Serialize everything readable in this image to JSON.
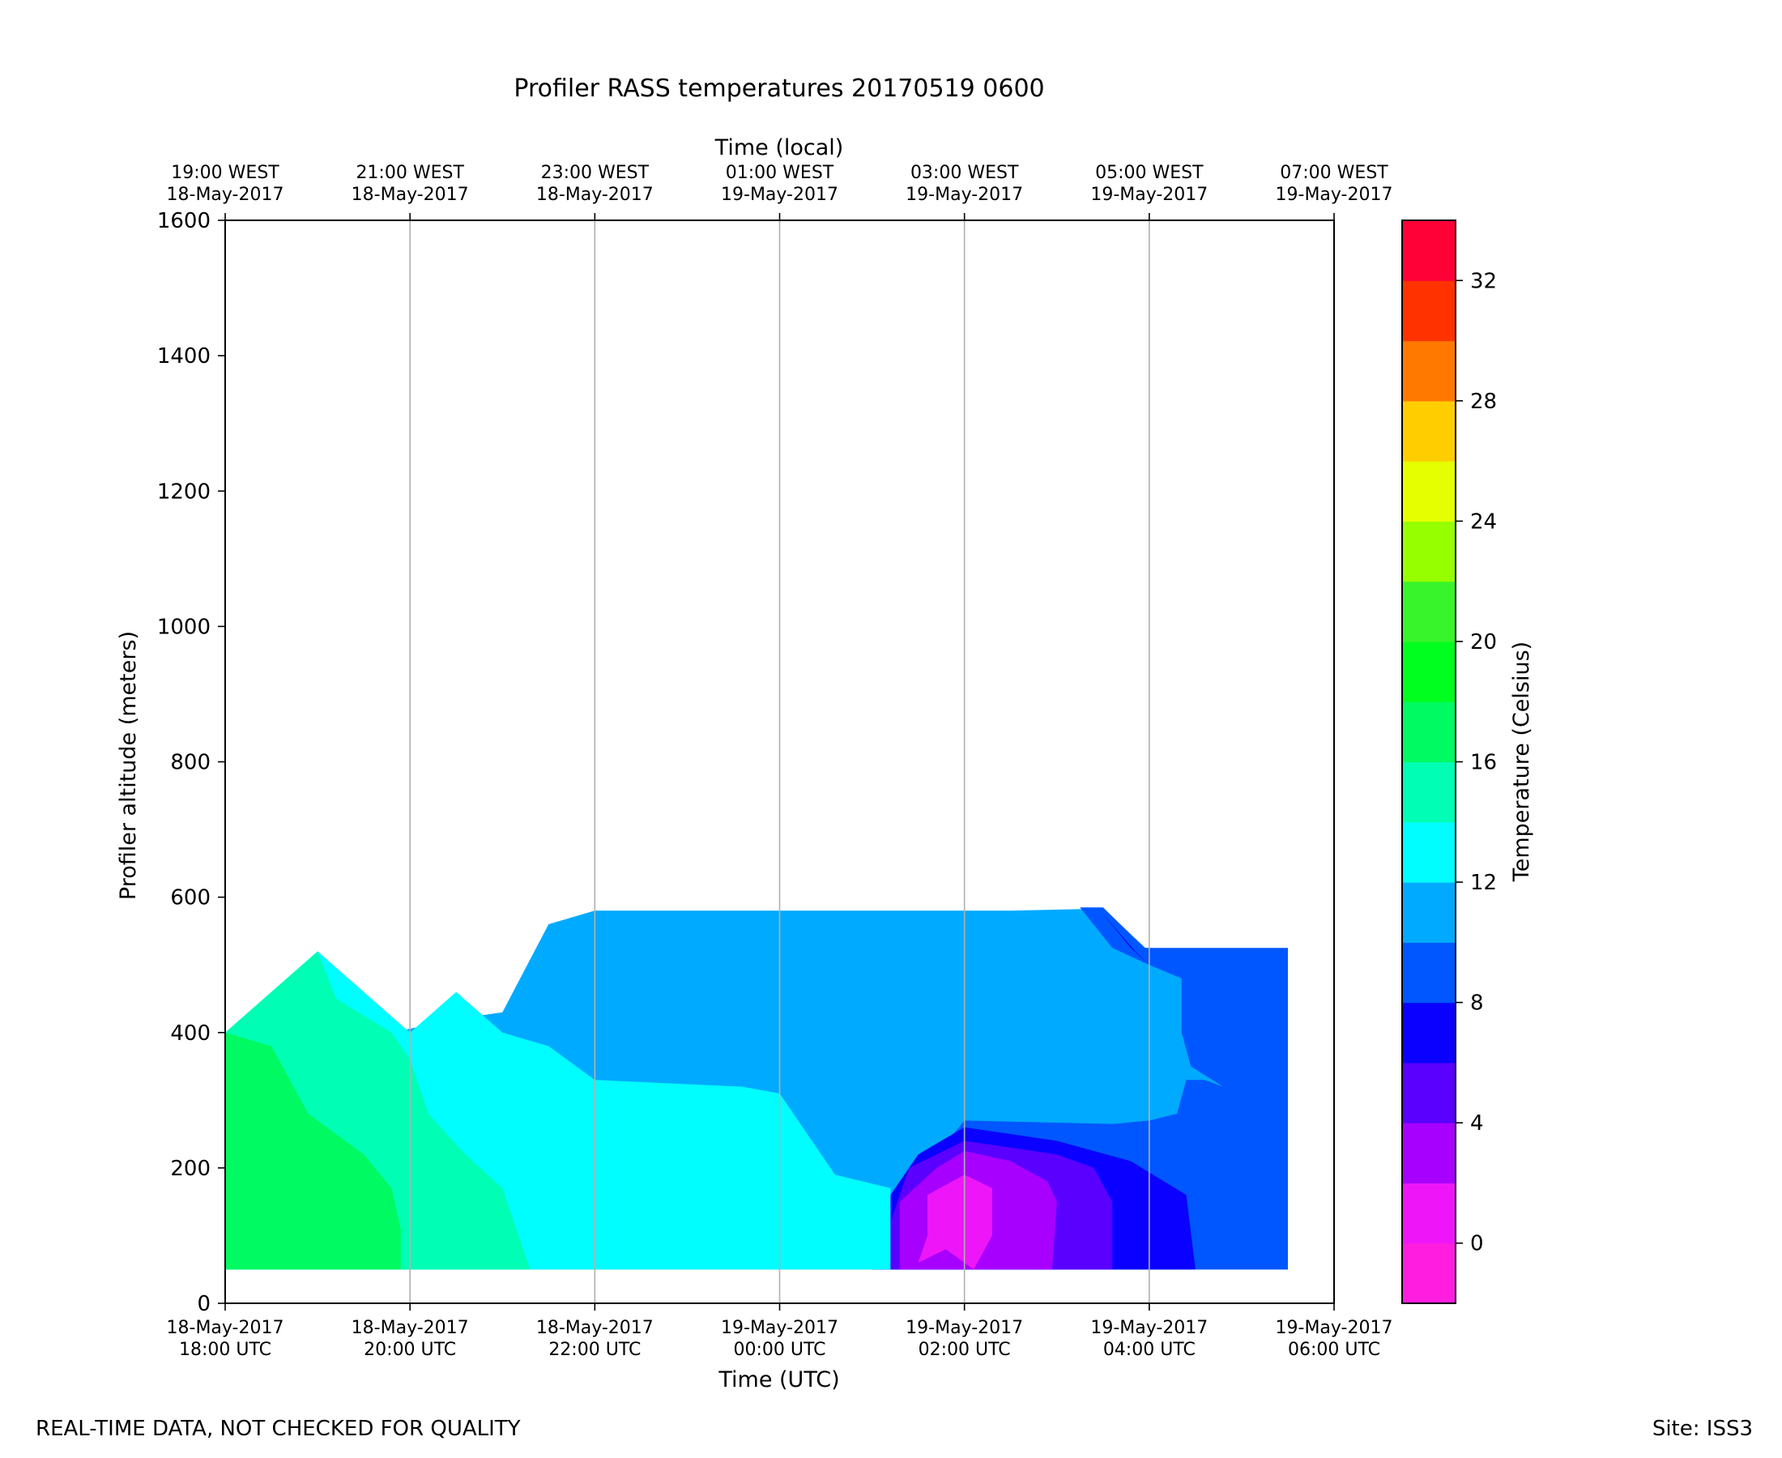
{
  "chart_data": {
    "type": "contour",
    "title": "Profiler RASS temperatures 20170519 0600",
    "xlabel": "Time (UTC)",
    "x2label": "Time (local)",
    "ylabel": "Profiler altitude (meters)",
    "colorbar_label": "Temperature (Celsius)",
    "x_range_hours": [
      0,
      12
    ],
    "ylim": [
      0,
      1600
    ],
    "grid": "vertical",
    "x_ticks": [
      {
        "hours": 0,
        "line1": "18-May-2017",
        "line2": "18:00 UTC"
      },
      {
        "hours": 2,
        "line1": "18-May-2017",
        "line2": "20:00 UTC"
      },
      {
        "hours": 4,
        "line1": "18-May-2017",
        "line2": "22:00 UTC"
      },
      {
        "hours": 6,
        "line1": "19-May-2017",
        "line2": "00:00 UTC"
      },
      {
        "hours": 8,
        "line1": "19-May-2017",
        "line2": "02:00 UTC"
      },
      {
        "hours": 10,
        "line1": "19-May-2017",
        "line2": "04:00 UTC"
      },
      {
        "hours": 12,
        "line1": "19-May-2017",
        "line2": "06:00 UTC"
      }
    ],
    "x2_ticks": [
      {
        "hours": 0,
        "line1": "19:00 WEST",
        "line2": "18-May-2017"
      },
      {
        "hours": 2,
        "line1": "21:00 WEST",
        "line2": "18-May-2017"
      },
      {
        "hours": 4,
        "line1": "23:00 WEST",
        "line2": "18-May-2017"
      },
      {
        "hours": 6,
        "line1": "01:00 WEST",
        "line2": "19-May-2017"
      },
      {
        "hours": 8,
        "line1": "03:00 WEST",
        "line2": "19-May-2017"
      },
      {
        "hours": 10,
        "line1": "05:00 WEST",
        "line2": "19-May-2017"
      },
      {
        "hours": 12,
        "line1": "07:00 WEST",
        "line2": "19-May-2017"
      }
    ],
    "y_ticks": [
      0,
      200,
      400,
      600,
      800,
      1000,
      1200,
      1400,
      1600
    ],
    "colorbar": {
      "levels": [
        -2,
        0,
        2,
        4,
        6,
        8,
        10,
        12,
        14,
        16,
        18,
        20,
        22,
        24,
        26,
        28,
        30,
        32,
        34
      ],
      "colors": [
        "#ff1ee0",
        "#ee16f8",
        "#a800ff",
        "#5a00ff",
        "#0a00ff",
        "#0057ff",
        "#00aaff",
        "#00fdff",
        "#00ffb4",
        "#00fa62",
        "#00ff1e",
        "#38f42a",
        "#96ff00",
        "#e5ff00",
        "#ffcd00",
        "#ff7800",
        "#ff3200",
        "#ff0037"
      ],
      "tick_values": [
        0,
        4,
        8,
        12,
        16,
        20,
        24,
        28,
        32
      ]
    },
    "contour_regions": [
      {
        "level_index": 6,
        "label": "10-12",
        "points": [
          [
            0.0,
            350
          ],
          [
            1.8,
            400
          ],
          [
            2.5,
            420
          ],
          [
            3.0,
            430
          ],
          [
            3.5,
            560
          ],
          [
            4.0,
            580
          ],
          [
            7.6,
            580
          ],
          [
            8.5,
            580
          ],
          [
            9.5,
            583
          ],
          [
            10.0,
            520
          ],
          [
            11.5,
            520
          ],
          [
            11.5,
            50
          ],
          [
            0.0,
            50
          ]
        ]
      },
      {
        "level_index": 5,
        "label": "8-10",
        "points": [
          [
            9.25,
            585
          ],
          [
            9.6,
            525
          ],
          [
            10.0,
            500
          ],
          [
            10.35,
            480
          ],
          [
            10.35,
            400
          ],
          [
            10.45,
            350
          ],
          [
            10.8,
            320
          ],
          [
            10.6,
            330
          ],
          [
            10.4,
            330
          ],
          [
            10.3,
            280
          ],
          [
            10.0,
            270
          ],
          [
            9.6,
            265
          ],
          [
            8.0,
            270
          ],
          [
            7.7,
            220
          ],
          [
            7.4,
            160
          ],
          [
            7.0,
            50
          ],
          [
            11.5,
            50
          ],
          [
            11.5,
            525
          ],
          [
            9.95,
            525
          ],
          [
            9.5,
            585
          ]
        ]
      },
      {
        "level_index": 4,
        "label": "6-8",
        "points": [
          [
            9.5,
            575
          ],
          [
            9.8,
            525
          ],
          [
            10.0,
            500
          ],
          [
            9.85,
            520
          ],
          [
            9.5,
            575
          ]
        ]
      },
      {
        "level_index": 4,
        "label": "6-8",
        "points": [
          [
            7.0,
            50
          ],
          [
            7.15,
            100
          ],
          [
            7.2,
            160
          ],
          [
            7.5,
            220
          ],
          [
            8.0,
            260
          ],
          [
            9.0,
            240
          ],
          [
            9.8,
            210
          ],
          [
            10.4,
            160
          ],
          [
            10.5,
            50
          ]
        ]
      },
      {
        "level_index": 3,
        "label": "4-6",
        "points": [
          [
            7.15,
            50
          ],
          [
            7.2,
            120
          ],
          [
            7.4,
            200
          ],
          [
            8.0,
            240
          ],
          [
            9.0,
            220
          ],
          [
            9.4,
            200
          ],
          [
            9.6,
            150
          ],
          [
            9.6,
            50
          ]
        ]
      },
      {
        "level_index": 2,
        "label": "2-4",
        "points": [
          [
            7.3,
            50
          ],
          [
            7.3,
            150
          ],
          [
            7.7,
            200
          ],
          [
            8.0,
            225
          ],
          [
            8.5,
            210
          ],
          [
            8.9,
            180
          ],
          [
            9.0,
            150
          ],
          [
            8.95,
            50
          ]
        ]
      },
      {
        "level_index": 1,
        "label": "0-2",
        "points": [
          [
            7.5,
            60
          ],
          [
            7.6,
            100
          ],
          [
            7.6,
            160
          ],
          [
            8.0,
            190
          ],
          [
            8.3,
            170
          ],
          [
            8.3,
            100
          ],
          [
            8.1,
            50
          ],
          [
            7.8,
            80
          ]
        ]
      },
      {
        "level_index": 7,
        "label": "12-14",
        "points": [
          [
            0.0,
            50
          ],
          [
            0.0,
            400
          ],
          [
            1.0,
            520
          ],
          [
            2.0,
            400
          ],
          [
            2.5,
            460
          ],
          [
            3.0,
            400
          ],
          [
            3.5,
            380
          ],
          [
            4.0,
            330
          ],
          [
            5.6,
            320
          ],
          [
            6.0,
            310
          ],
          [
            6.3,
            250
          ],
          [
            6.6,
            190
          ],
          [
            7.2,
            170
          ],
          [
            7.2,
            50
          ]
        ]
      },
      {
        "level_index": 8,
        "label": "14-16",
        "points": [
          [
            0.0,
            50
          ],
          [
            0.0,
            400
          ],
          [
            1.0,
            520
          ],
          [
            1.2,
            450
          ],
          [
            1.8,
            400
          ],
          [
            2.0,
            360
          ],
          [
            2.2,
            280
          ],
          [
            2.6,
            220
          ],
          [
            3.0,
            170
          ],
          [
            3.3,
            50
          ]
        ]
      },
      {
        "level_index": 9,
        "label": "16-18",
        "points": [
          [
            0.0,
            50
          ],
          [
            0.0,
            400
          ],
          [
            0.5,
            380
          ],
          [
            0.9,
            280
          ],
          [
            1.5,
            220
          ],
          [
            1.8,
            170
          ],
          [
            1.9,
            110
          ],
          [
            1.9,
            50
          ]
        ]
      }
    ]
  },
  "footer": {
    "left_note": "REAL-TIME DATA, NOT CHECKED FOR QUALITY",
    "right_note": "Site: ISS3"
  }
}
